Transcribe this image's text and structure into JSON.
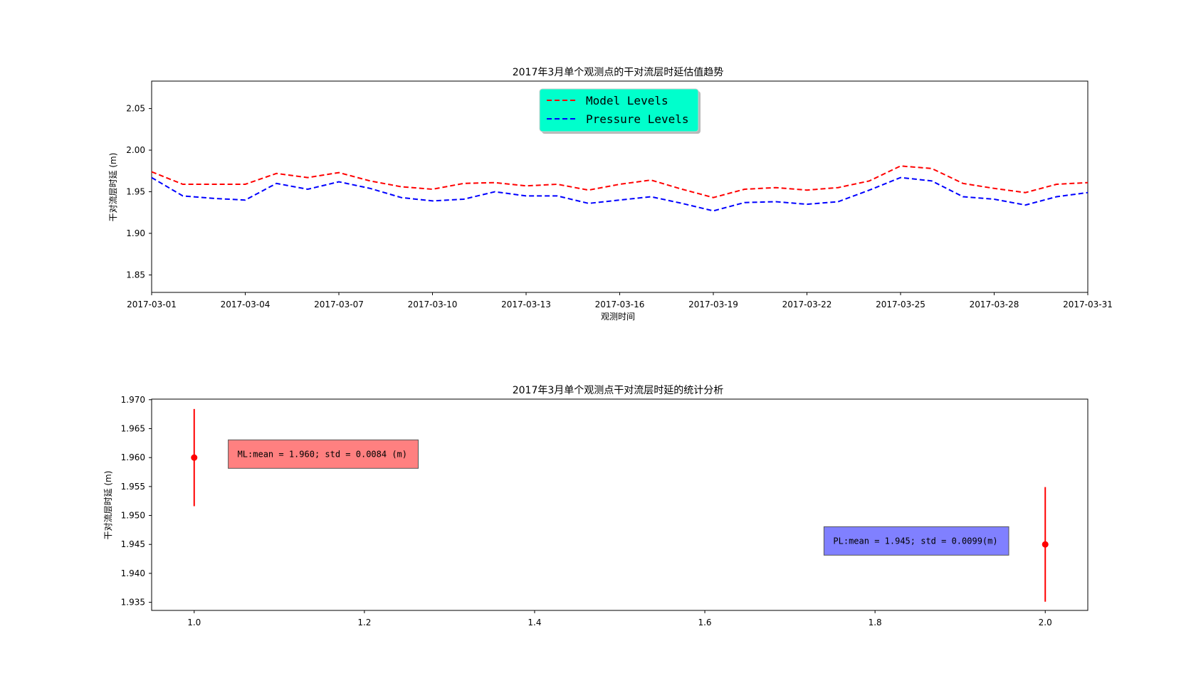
{
  "chart_data": [
    {
      "type": "line",
      "title": "2017年3月单个观测点的干对流层时延估值趋势",
      "xlabel": "观测时间",
      "ylabel": "干对流层时延 (m)",
      "x_ticks": [
        "2017-03-01",
        "2017-03-04",
        "2017-03-07",
        "2017-03-10",
        "2017-03-13",
        "2017-03-16",
        "2017-03-19",
        "2017-03-22",
        "2017-03-25",
        "2017-03-28",
        "2017-03-31"
      ],
      "y_ticks": [
        "1.85",
        "1.90",
        "1.95",
        "2.00",
        "2.05"
      ],
      "xlim": [
        "2017-03-01",
        "2017-03-31"
      ],
      "ylim": [
        1.829,
        2.083
      ],
      "grid": false,
      "legend": "upper center",
      "x": [
        "2017-03-01",
        "2017-03-02",
        "2017-03-03",
        "2017-03-04",
        "2017-03-05",
        "2017-03-06",
        "2017-03-07",
        "2017-03-08",
        "2017-03-09",
        "2017-03-10",
        "2017-03-11",
        "2017-03-12",
        "2017-03-13",
        "2017-03-14",
        "2017-03-15",
        "2017-03-16",
        "2017-03-17",
        "2017-03-18",
        "2017-03-19",
        "2017-03-20",
        "2017-03-21",
        "2017-03-22",
        "2017-03-23",
        "2017-03-24",
        "2017-03-25",
        "2017-03-26",
        "2017-03-27",
        "2017-03-28",
        "2017-03-29",
        "2017-03-30",
        "2017-03-31"
      ],
      "series": [
        {
          "name": "Model Levels",
          "color": "#ff0000",
          "linestyle": "dashed",
          "values": [
            1.974,
            1.959,
            1.959,
            1.959,
            1.972,
            1.967,
            1.973,
            1.963,
            1.956,
            1.953,
            1.96,
            1.961,
            1.957,
            1.959,
            1.952,
            1.959,
            1.964,
            1.953,
            1.943,
            1.953,
            1.955,
            1.952,
            1.955,
            1.963,
            1.981,
            1.978,
            1.96,
            1.954,
            1.949,
            1.959,
            1.961
          ]
        },
        {
          "name": "Pressure Levels",
          "color": "#0000ff",
          "linestyle": "dashed",
          "values": [
            1.967,
            1.945,
            1.942,
            1.94,
            1.96,
            1.953,
            1.962,
            1.954,
            1.943,
            1.939,
            1.941,
            1.95,
            1.945,
            1.945,
            1.936,
            1.94,
            1.944,
            1.936,
            1.927,
            1.937,
            1.938,
            1.935,
            1.938,
            1.952,
            1.967,
            1.963,
            1.944,
            1.941,
            1.934,
            1.944,
            1.949
          ]
        }
      ],
      "legend_bg": "#00ffcc"
    },
    {
      "type": "errorbar",
      "title": "2017年3月单个观测点干对流层时延的统计分析",
      "xlabel": "",
      "ylabel": "干对流层时延 (m)",
      "x_ticks": [
        "1.0",
        "1.2",
        "1.4",
        "1.6",
        "1.8",
        "2.0"
      ],
      "y_ticks": [
        "1.935",
        "1.940",
        "1.945",
        "1.950",
        "1.955",
        "1.960",
        "1.965",
        "1.970"
      ],
      "xlim": [
        0.95,
        2.05
      ],
      "ylim": [
        1.9336,
        1.9701
      ],
      "grid": false,
      "points": [
        {
          "x": 1.0,
          "y": 1.96,
          "err": 0.0084,
          "color": "#ff0000"
        },
        {
          "x": 2.0,
          "y": 1.945,
          "err": 0.0099,
          "color": "#ff0000"
        }
      ],
      "annotations": [
        {
          "text": "ML:mean = 1.960; std = 0.0084 (m)",
          "x": 1.04,
          "y": 1.9606,
          "bg": "#ff8080"
        },
        {
          "text": "PL:mean = 1.945; std = 0.0099(m)",
          "x": 1.74,
          "y": 1.9456,
          "bg": "#8080ff"
        }
      ]
    }
  ]
}
